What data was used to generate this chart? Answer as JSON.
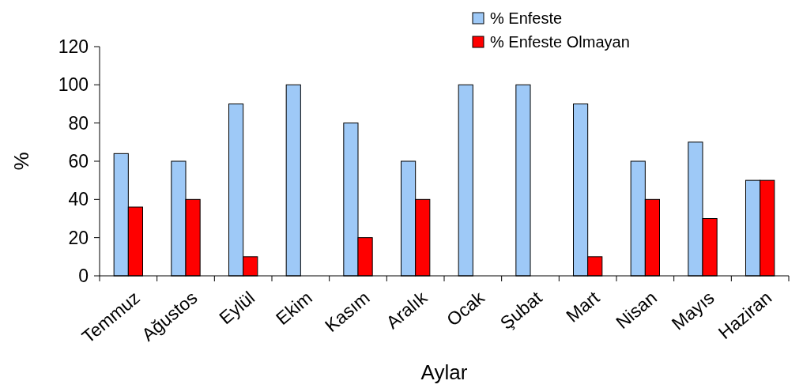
{
  "chart_data": {
    "type": "bar",
    "xlabel": "Aylar",
    "ylabel": "%",
    "categories": [
      "Temmuz",
      "Ağustos",
      "Eylül",
      "Ekim",
      "Kasım",
      "Aralık",
      "Ocak",
      "Şubat",
      "Mart",
      "Nisan",
      "Mayıs",
      "Haziran"
    ],
    "series": [
      {
        "name": "% Enfeste",
        "color": "#9ec9f7",
        "values": [
          64,
          60,
          90,
          100,
          80,
          60,
          100,
          100,
          90,
          60,
          70,
          50
        ]
      },
      {
        "name": "% Enfeste Olmayan",
        "color": "#ff0000",
        "values": [
          36,
          40,
          10,
          0,
          20,
          40,
          0,
          0,
          10,
          40,
          30,
          50
        ]
      }
    ],
    "ylim": [
      0,
      120
    ],
    "yticks": [
      0,
      20,
      40,
      60,
      80,
      100,
      120
    ],
    "grid": false,
    "legend": "top right"
  }
}
